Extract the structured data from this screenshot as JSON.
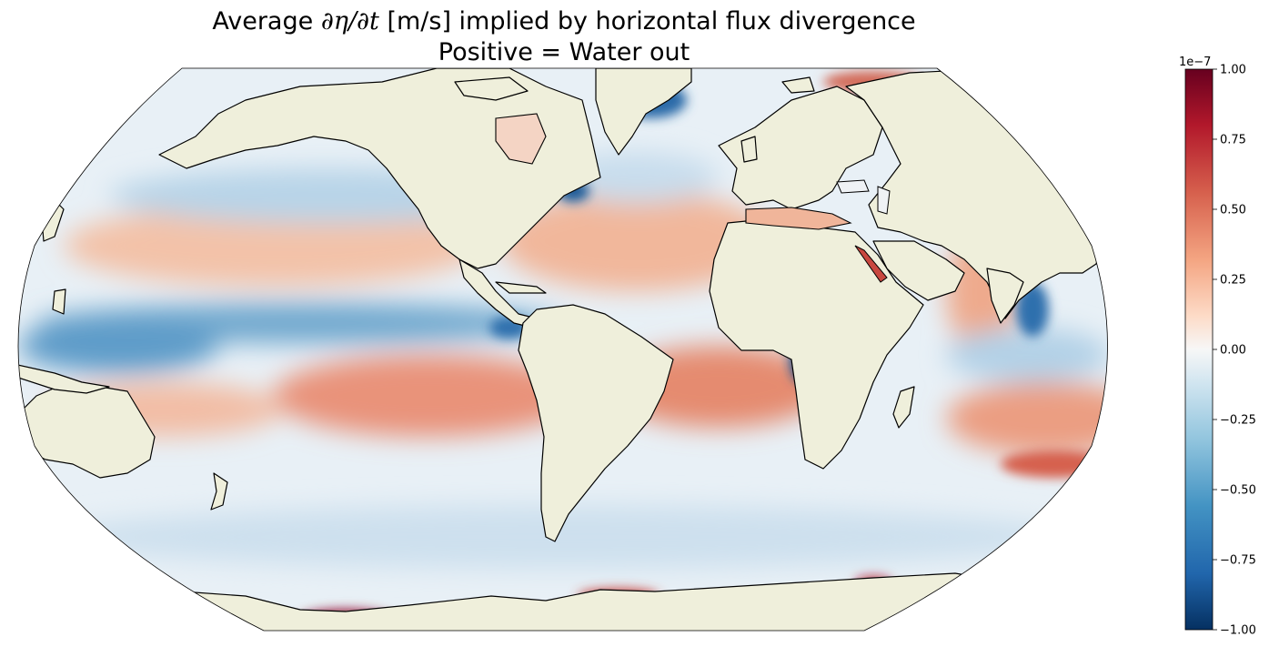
{
  "title": {
    "prefix": "Average ",
    "symbol": "∂η/∂t",
    "suffix": " [m/s] implied by horizontal flux divergence",
    "line2": "Positive = Water out"
  },
  "colors": {
    "land": "#efefdb",
    "coast": "#000000",
    "negative_max": "#053061",
    "neutral": "#f7f7f7",
    "positive_max": "#67001f"
  },
  "chart_data": {
    "type": "heatmap",
    "projection": "Robinson",
    "colormap": "RdBu_r",
    "colorbar": {
      "range": [
        -1.0,
        1.0
      ],
      "multiplier": "1e−7",
      "ticks": [
        1.0,
        0.75,
        0.5,
        0.25,
        0.0,
        -0.25,
        -0.5,
        -0.75,
        -1.0
      ],
      "tick_labels": [
        "1.00",
        "0.75",
        "0.50",
        "0.25",
        "0.00",
        "−0.25",
        "−0.50",
        "−0.75",
        "−1.00"
      ],
      "placement": "right"
    }
  }
}
